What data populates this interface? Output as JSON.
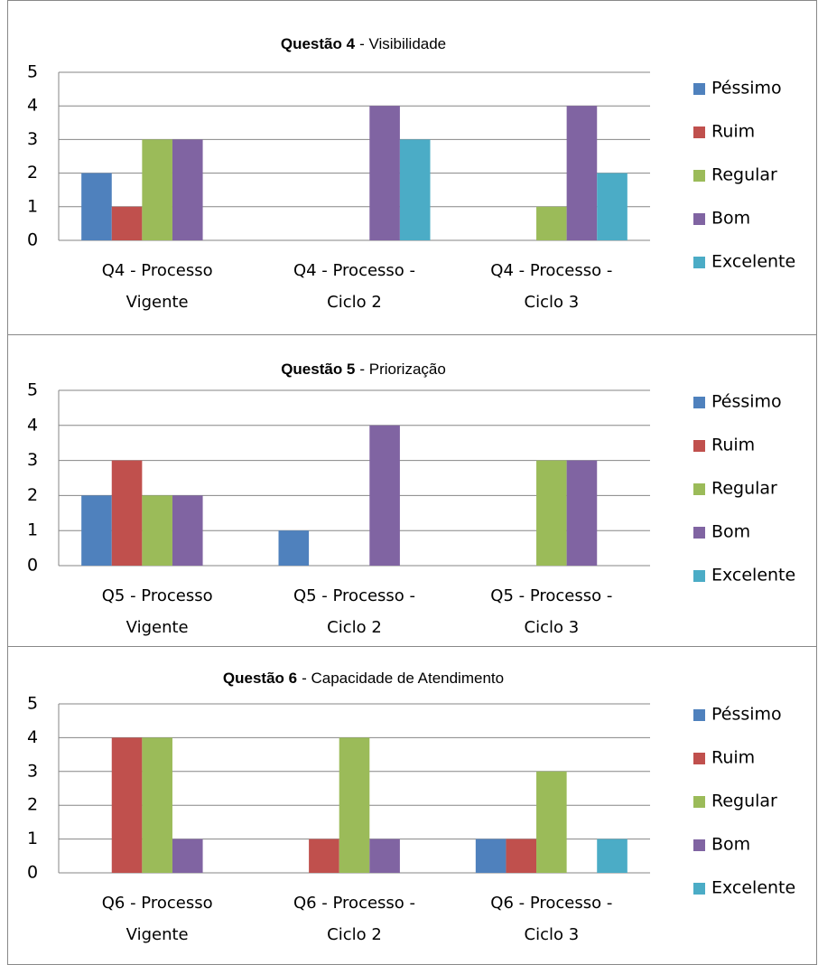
{
  "chart_data": [
    {
      "type": "bar",
      "title": {
        "bold": "Questão 4",
        "rest": "- Visibilidade"
      },
      "categories": [
        [
          "Q4 - Processo",
          "Vigente"
        ],
        [
          "Q4 - Processo -",
          "Ciclo 2"
        ],
        [
          "Q4 - Processo -",
          "Ciclo 3"
        ]
      ],
      "series": [
        {
          "name": "Péssimo",
          "color": "#4f81bd",
          "values": [
            2,
            0,
            0
          ]
        },
        {
          "name": "Ruim",
          "color": "#c0504d",
          "values": [
            1,
            0,
            0
          ]
        },
        {
          "name": "Regular",
          "color": "#9bbb59",
          "values": [
            3,
            0,
            1
          ]
        },
        {
          "name": "Bom",
          "color": "#8064a2",
          "values": [
            3,
            4,
            4
          ]
        },
        {
          "name": "Excelente",
          "color": "#4bacc6",
          "values": [
            0,
            3,
            2
          ]
        }
      ],
      "ylim": [
        0,
        5
      ],
      "yticks": [
        0,
        1,
        2,
        3,
        4,
        5
      ],
      "grid": true,
      "legend": "right"
    },
    {
      "type": "bar",
      "title": {
        "bold": "Questão 5",
        "rest": "- Priorização"
      },
      "categories": [
        [
          "Q5 - Processo",
          "Vigente"
        ],
        [
          "Q5 - Processo -",
          "Ciclo 2"
        ],
        [
          "Q5 - Processo -",
          "Ciclo 3"
        ]
      ],
      "series": [
        {
          "name": "Péssimo",
          "color": "#4f81bd",
          "values": [
            2,
            1,
            0
          ]
        },
        {
          "name": "Ruim",
          "color": "#c0504d",
          "values": [
            3,
            0,
            0
          ]
        },
        {
          "name": "Regular",
          "color": "#9bbb59",
          "values": [
            2,
            0,
            3
          ]
        },
        {
          "name": "Bom",
          "color": "#8064a2",
          "values": [
            2,
            4,
            3
          ]
        },
        {
          "name": "Excelente",
          "color": "#4bacc6",
          "values": [
            0,
            0,
            0
          ]
        }
      ],
      "ylim": [
        0,
        5
      ],
      "yticks": [
        0,
        1,
        2,
        3,
        4,
        5
      ],
      "grid": true,
      "legend": "right"
    },
    {
      "type": "bar",
      "title": {
        "bold": "Questão 6",
        "rest": "- Capacidade de Atendimento"
      },
      "categories": [
        [
          "Q6 - Processo",
          "Vigente"
        ],
        [
          "Q6 - Processo -",
          "Ciclo 2"
        ],
        [
          "Q6 - Processo -",
          "Ciclo 3"
        ]
      ],
      "series": [
        {
          "name": "Péssimo",
          "color": "#4f81bd",
          "values": [
            0,
            0,
            1
          ]
        },
        {
          "name": "Ruim",
          "color": "#c0504d",
          "values": [
            4,
            1,
            1
          ]
        },
        {
          "name": "Regular",
          "color": "#9bbb59",
          "values": [
            4,
            4,
            3
          ]
        },
        {
          "name": "Bom",
          "color": "#8064a2",
          "values": [
            1,
            1,
            0
          ]
        },
        {
          "name": "Excelente",
          "color": "#4bacc6",
          "values": [
            0,
            0,
            1
          ]
        }
      ],
      "ylim": [
        0,
        5
      ],
      "yticks": [
        0,
        1,
        2,
        3,
        4,
        5
      ],
      "grid": true,
      "legend": "right"
    }
  ]
}
